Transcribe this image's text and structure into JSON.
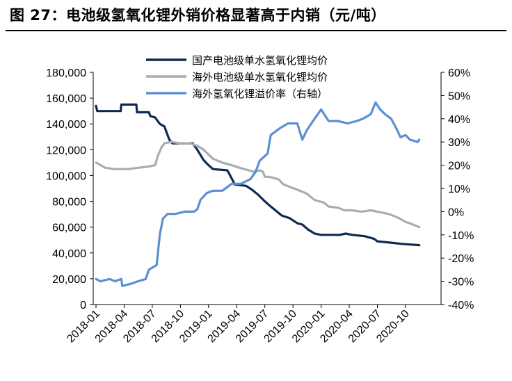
{
  "figure": {
    "title": "图 27：电池级氢氧化锂外销价格显著高于内销（元/吨）"
  },
  "colors": {
    "domestic": "#0d2a4f",
    "overseas": "#a3aeb6",
    "premium": "#5b8fd4",
    "axis": "#000000"
  },
  "chart_data": {
    "type": "line",
    "title": "",
    "xlabel": "",
    "ylabel": "",
    "ylim": [
      0,
      180000
    ],
    "ylim_right": [
      -40,
      60
    ],
    "grid": false,
    "legend_position": "top",
    "y_ticks": [
      "180,000",
      "160,000",
      "140,000",
      "120,000",
      "100,000",
      "80,000",
      "60,000",
      "40,000",
      "20,000",
      "0"
    ],
    "y2_ticks": [
      "60%",
      "50%",
      "40%",
      "30%",
      "20%",
      "10%",
      "0%",
      "-10%",
      "-20%",
      "-30%",
      "-40%"
    ],
    "x_ticks": [
      "2018-01",
      "2018-04",
      "2018-07",
      "2018-10",
      "2019-01",
      "2019-04",
      "2019-07",
      "2019-10",
      "2020-01",
      "2020-04",
      "2020-07",
      "2020-10"
    ],
    "series": [
      {
        "name": "国产电池级单水氢氧化锂均价",
        "axis": "left",
        "color_key": "domestic",
        "points": [
          [
            "2018-01",
            154000
          ],
          [
            "2018-01-05",
            150000
          ],
          [
            "2018-03-20",
            150000
          ],
          [
            "2018-03-22",
            155000
          ],
          [
            "2018-05-10",
            155000
          ],
          [
            "2018-05-12",
            149000
          ],
          [
            "2018-06-20",
            149000
          ],
          [
            "2018-06-25",
            146000
          ],
          [
            "2018-07-10",
            145000
          ],
          [
            "2018-07-25",
            140000
          ],
          [
            "2018-08-10",
            138000
          ],
          [
            "2018-08-25",
            128000
          ],
          [
            "2018-09-05",
            125000
          ],
          [
            "2018-11-10",
            125000
          ],
          [
            "2018-11-25",
            120000
          ],
          [
            "2018-12-15",
            112000
          ],
          [
            "2019-01-01",
            108000
          ],
          [
            "2019-01-15",
            105000
          ],
          [
            "2019-03-01",
            104000
          ],
          [
            "2019-03-10",
            100000
          ],
          [
            "2019-03-25",
            93000
          ],
          [
            "2019-05-01",
            92000
          ],
          [
            "2019-05-20",
            89000
          ],
          [
            "2019-06-10",
            85000
          ],
          [
            "2019-07-01",
            80000
          ],
          [
            "2019-07-20",
            76000
          ],
          [
            "2019-08-10",
            72000
          ],
          [
            "2019-08-25",
            69000
          ],
          [
            "2019-09-20",
            67000
          ],
          [
            "2019-10-15",
            63000
          ],
          [
            "2019-11-01",
            62000
          ],
          [
            "2019-11-20",
            58000
          ],
          [
            "2019-12-10",
            55000
          ],
          [
            "2020-01-01",
            54000
          ],
          [
            "2020-03-01",
            54000
          ],
          [
            "2020-03-20",
            55000
          ],
          [
            "2020-04-10",
            54000
          ],
          [
            "2020-05-20",
            53000
          ],
          [
            "2020-06-20",
            51000
          ],
          [
            "2020-07-01",
            49000
          ],
          [
            "2020-08-10",
            48000
          ],
          [
            "2020-09-20",
            47000
          ],
          [
            "2020-11-15",
            46000
          ]
        ]
      },
      {
        "name": "海外电池级单水氢氧化锂均价",
        "axis": "left",
        "color_key": "overseas",
        "points": [
          [
            "2018-01",
            110000
          ],
          [
            "2018-02-01",
            106000
          ],
          [
            "2018-03-01",
            105000
          ],
          [
            "2018-04-15",
            105000
          ],
          [
            "2018-05-15",
            106000
          ],
          [
            "2018-06-20",
            107000
          ],
          [
            "2018-07-10",
            108000
          ],
          [
            "2018-07-20",
            116000
          ],
          [
            "2018-08-01",
            122000
          ],
          [
            "2018-08-10",
            125000
          ],
          [
            "2018-09-01",
            126000
          ],
          [
            "2018-10-01",
            125000
          ],
          [
            "2018-11-01",
            125000
          ],
          [
            "2018-11-25",
            123000
          ],
          [
            "2018-12-15",
            120000
          ],
          [
            "2019-01-15",
            113000
          ],
          [
            "2019-02-15",
            110000
          ],
          [
            "2019-03-15",
            108000
          ],
          [
            "2019-04-10",
            106000
          ],
          [
            "2019-05-10",
            104000
          ],
          [
            "2019-05-25",
            103000
          ],
          [
            "2019-06-15",
            104000
          ],
          [
            "2019-06-25",
            103000
          ],
          [
            "2019-07-01",
            99000
          ],
          [
            "2019-07-15",
            99000
          ],
          [
            "2019-08-15",
            97000
          ],
          [
            "2019-09-01",
            93000
          ],
          [
            "2019-10-15",
            89000
          ],
          [
            "2019-11-15",
            86000
          ],
          [
            "2019-12-10",
            81000
          ],
          [
            "2020-01-10",
            79000
          ],
          [
            "2020-01-25",
            76000
          ],
          [
            "2020-02-25",
            75000
          ],
          [
            "2020-03-15",
            73000
          ],
          [
            "2020-04-10",
            73000
          ],
          [
            "2020-05-10",
            72000
          ],
          [
            "2020-06-10",
            73000
          ],
          [
            "2020-07-01",
            72000
          ],
          [
            "2020-08-10",
            70000
          ],
          [
            "2020-09-10",
            67000
          ],
          [
            "2020-10-01",
            64000
          ],
          [
            "2020-10-15",
            63000
          ],
          [
            "2020-11-15",
            60000
          ]
        ]
      },
      {
        "name": "海外氢氧化锂溢价率（右轴）",
        "axis": "right",
        "color_key": "premium",
        "points": [
          [
            "2018-01",
            -29
          ],
          [
            "2018-01-15",
            -30
          ],
          [
            "2018-02-15",
            -29
          ],
          [
            "2018-03-01",
            -30
          ],
          [
            "2018-03-22",
            -29
          ],
          [
            "2018-03-25",
            -32
          ],
          [
            "2018-04-25",
            -31
          ],
          [
            "2018-05-15",
            -30
          ],
          [
            "2018-06-10",
            -29
          ],
          [
            "2018-06-20",
            -25
          ],
          [
            "2018-07-15",
            -23
          ],
          [
            "2018-07-25",
            -10
          ],
          [
            "2018-08-05",
            -3
          ],
          [
            "2018-08-20",
            -1
          ],
          [
            "2018-09-15",
            -1
          ],
          [
            "2018-10-15",
            0
          ],
          [
            "2018-11-15",
            0
          ],
          [
            "2018-11-25",
            1
          ],
          [
            "2018-12-05",
            5
          ],
          [
            "2018-12-25",
            8
          ],
          [
            "2019-01-15",
            9
          ],
          [
            "2019-02-15",
            9
          ],
          [
            "2019-03-15",
            12
          ],
          [
            "2019-04-15",
            12
          ],
          [
            "2019-05-15",
            14
          ],
          [
            "2019-06-01",
            17
          ],
          [
            "2019-06-15",
            22
          ],
          [
            "2019-07-10",
            25
          ],
          [
            "2019-07-20",
            33
          ],
          [
            "2019-08-20",
            36
          ],
          [
            "2019-09-15",
            38
          ],
          [
            "2019-10-15",
            38
          ],
          [
            "2019-11-01",
            31
          ],
          [
            "2019-11-15",
            35
          ],
          [
            "2019-12-10",
            40
          ],
          [
            "2020-01-01",
            44
          ],
          [
            "2020-01-25",
            39
          ],
          [
            "2020-02-25",
            39
          ],
          [
            "2020-03-25",
            38
          ],
          [
            "2020-04-25",
            39
          ],
          [
            "2020-05-15",
            40
          ],
          [
            "2020-06-10",
            42
          ],
          [
            "2020-06-25",
            47
          ],
          [
            "2020-07-10",
            44
          ],
          [
            "2020-07-25",
            42
          ],
          [
            "2020-08-15",
            40
          ],
          [
            "2020-09-01",
            36
          ],
          [
            "2020-09-15",
            32
          ],
          [
            "2020-10-01",
            33
          ],
          [
            "2020-10-15",
            31
          ],
          [
            "2020-11-10",
            30
          ],
          [
            "2020-11-15",
            31
          ]
        ]
      }
    ]
  }
}
